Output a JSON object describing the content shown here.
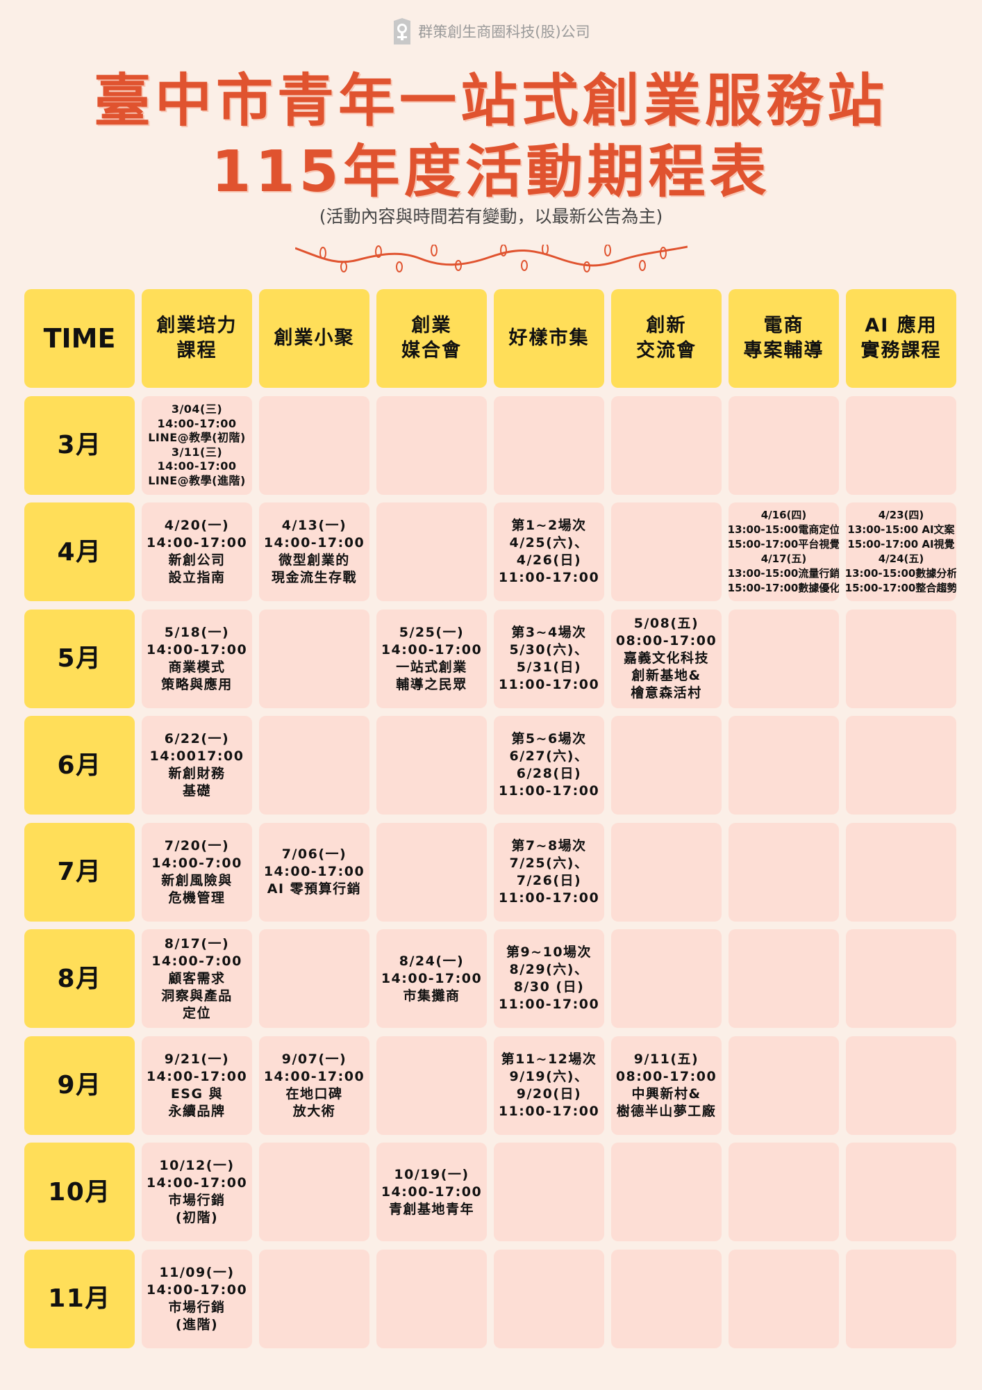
{
  "brand": {
    "company": "群策創生商圈科技(股)公司",
    "logo_icon": "person-badge-icon"
  },
  "title_line1": "臺中市青年一站式創業服務站",
  "title_line2": "115年度活動期程表",
  "note": "(活動內容與時間若有變動，以最新公告為主)",
  "colors": {
    "background": "#FBEFE7",
    "title": "#E0532F",
    "header": "#FFDE59",
    "cell": "#FDDED5"
  },
  "table": {
    "headers": [
      [
        "TIME"
      ],
      [
        "創業培力",
        "課程"
      ],
      [
        "創業小聚"
      ],
      [
        "創業",
        "媒合會"
      ],
      [
        "好樣市集"
      ],
      [
        "創新",
        "交流會"
      ],
      [
        "電商",
        "專案輔導"
      ],
      [
        "AI 應用",
        "實務課程"
      ]
    ],
    "rows": [
      {
        "month": "3月",
        "cells": [
          [
            "3/04(三)",
            "14:00-17:00",
            "LINE@教學(初階)",
            "3/11(三)",
            "14:00-17:00",
            "LINE@教學(進階)"
          ],
          [],
          [],
          [],
          [],
          [],
          []
        ]
      },
      {
        "month": "4月",
        "cells": [
          [
            "4/20(一)",
            "14:00-17:00",
            "新創公司",
            "設立指南"
          ],
          [
            "4/13(一)",
            "14:00-17:00",
            "微型創業的",
            "現金流生存戰"
          ],
          [],
          [
            "第1~2場次",
            "4/25(六)、",
            "4/26(日)",
            "11:00-17:00"
          ],
          [],
          [
            "4/16(四)",
            "13:00-15:00電商定位",
            "15:00-17:00平台視覺",
            "4/17(五)",
            "13:00-15:00流量行銷",
            "15:00-17:00數據優化"
          ],
          [
            "4/23(四)",
            "13:00-15:00 AI文案",
            "15:00-17:00 AI視覺",
            "4/24(五)",
            "13:00-15:00數據分析",
            "15:00-17:00整合趨勢"
          ]
        ]
      },
      {
        "month": "5月",
        "cells": [
          [
            "5/18(一)",
            "14:00-17:00",
            "商業模式",
            "策略與應用"
          ],
          [],
          [
            "5/25(一)",
            "14:00-17:00",
            "一站式創業",
            "輔導之民眾"
          ],
          [
            "第3~4場次",
            "5/30(六)、",
            "5/31(日)",
            "11:00-17:00"
          ],
          [
            "5/08(五)",
            "08:00-17:00",
            "嘉義文化科技",
            "創新基地&",
            "檜意森活村"
          ],
          [],
          []
        ]
      },
      {
        "month": "6月",
        "cells": [
          [
            "6/22(一)",
            "14:0017:00",
            "新創財務",
            "基礎"
          ],
          [],
          [],
          [
            "第5~6場次",
            "6/27(六)、",
            "6/28(日)",
            "11:00-17:00"
          ],
          [],
          [],
          []
        ]
      },
      {
        "month": "7月",
        "cells": [
          [
            "7/20(一)",
            "14:00-7:00",
            "新創風險與",
            "危機管理"
          ],
          [
            "7/06(一)",
            "14:00-17:00",
            "AI 零預算行銷"
          ],
          [],
          [
            "第7~8場次",
            "7/25(六)、",
            "7/26(日)",
            "11:00-17:00"
          ],
          [],
          [],
          []
        ]
      },
      {
        "month": "8月",
        "cells": [
          [
            "8/17(一)",
            "14:00-7:00",
            "顧客需求",
            "洞察與產品",
            "定位"
          ],
          [],
          [
            "8/24(一)",
            "14:00-17:00",
            "市集攤商"
          ],
          [
            "第9~10場次",
            "8/29(六)、",
            "8/30 (日)",
            "11:00-17:00"
          ],
          [],
          [],
          []
        ]
      },
      {
        "month": "9月",
        "cells": [
          [
            "9/21(一)",
            "14:00-17:00",
            "ESG 與",
            "永續品牌"
          ],
          [
            "9/07(一)",
            "14:00-17:00",
            "在地口碑",
            "放大術"
          ],
          [],
          [
            "第11~12場次",
            "9/19(六)、",
            "9/20(日)",
            "11:00-17:00"
          ],
          [
            "9/11(五)",
            "08:00-17:00",
            "中興新村&",
            "樹德半山夢工廠"
          ],
          [],
          []
        ]
      },
      {
        "month": "10月",
        "cells": [
          [
            "10/12(一)",
            "14:00-17:00",
            "市場行銷",
            "(初階)"
          ],
          [],
          [
            "10/19(一)",
            "14:00-17:00",
            "青創基地青年"
          ],
          [],
          [],
          [],
          []
        ]
      },
      {
        "month": "11月",
        "cells": [
          [
            "11/09(一)",
            "14:00-17:00",
            "市場行銷",
            "(進階)"
          ],
          [],
          [],
          [],
          [],
          [],
          []
        ]
      }
    ]
  }
}
